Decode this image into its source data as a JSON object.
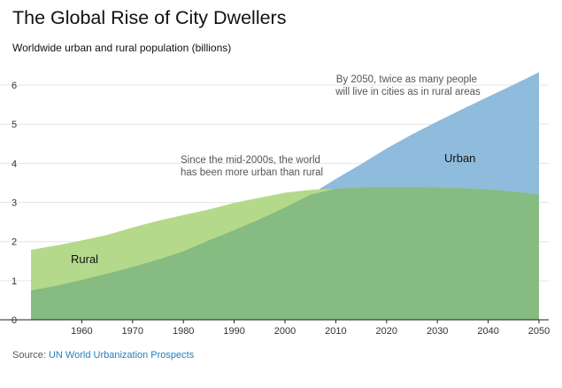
{
  "title": "The Global Rise of City Dwellers",
  "subtitle": "Worldwide urban and rural population (billions)",
  "source": {
    "prefix": "Source: ",
    "link": "UN World Urbanization Prospects"
  },
  "chart_data": {
    "type": "area",
    "title": "The Global Rise of City Dwellers",
    "subtitle": "Worldwide urban and rural population (billions)",
    "xlabel": "",
    "ylabel": "",
    "xlim": [
      1950,
      2050
    ],
    "ylim": [
      0,
      6.5
    ],
    "y_ticks": [
      0,
      1,
      2,
      3,
      4,
      5,
      6
    ],
    "x_ticks": [
      1960,
      1970,
      1980,
      1990,
      2000,
      2010,
      2020,
      2030,
      2040,
      2050
    ],
    "grid": true,
    "overlapping": true,
    "x": [
      1950,
      1955,
      1960,
      1965,
      1970,
      1975,
      1980,
      1985,
      1990,
      1995,
      2000,
      2005,
      2010,
      2015,
      2020,
      2025,
      2030,
      2035,
      2040,
      2045,
      2050
    ],
    "series": [
      {
        "name": "Rural",
        "color": "#b5d98b",
        "values": [
          1.79,
          1.9,
          2.03,
          2.17,
          2.36,
          2.53,
          2.68,
          2.82,
          2.99,
          3.12,
          3.25,
          3.32,
          3.35,
          3.38,
          3.39,
          3.39,
          3.38,
          3.36,
          3.33,
          3.28,
          3.2
        ]
      },
      {
        "name": "Urban",
        "color": "#8fbbdc",
        "values": [
          0.75,
          0.87,
          1.02,
          1.18,
          1.35,
          1.54,
          1.75,
          2.03,
          2.29,
          2.57,
          2.87,
          3.2,
          3.6,
          3.98,
          4.38,
          4.74,
          5.07,
          5.39,
          5.7,
          6.01,
          6.33
        ]
      }
    ],
    "overlap_color": "#86bb81",
    "annotations": [
      {
        "lines": [
          "By 2050, twice as many people",
          "will live in cities as in rural areas"
        ]
      },
      {
        "lines": [
          "Since the mid-2000s, the world",
          "has been more urban than rural"
        ]
      }
    ],
    "area_labels": [
      "Rural",
      "Urban"
    ]
  }
}
